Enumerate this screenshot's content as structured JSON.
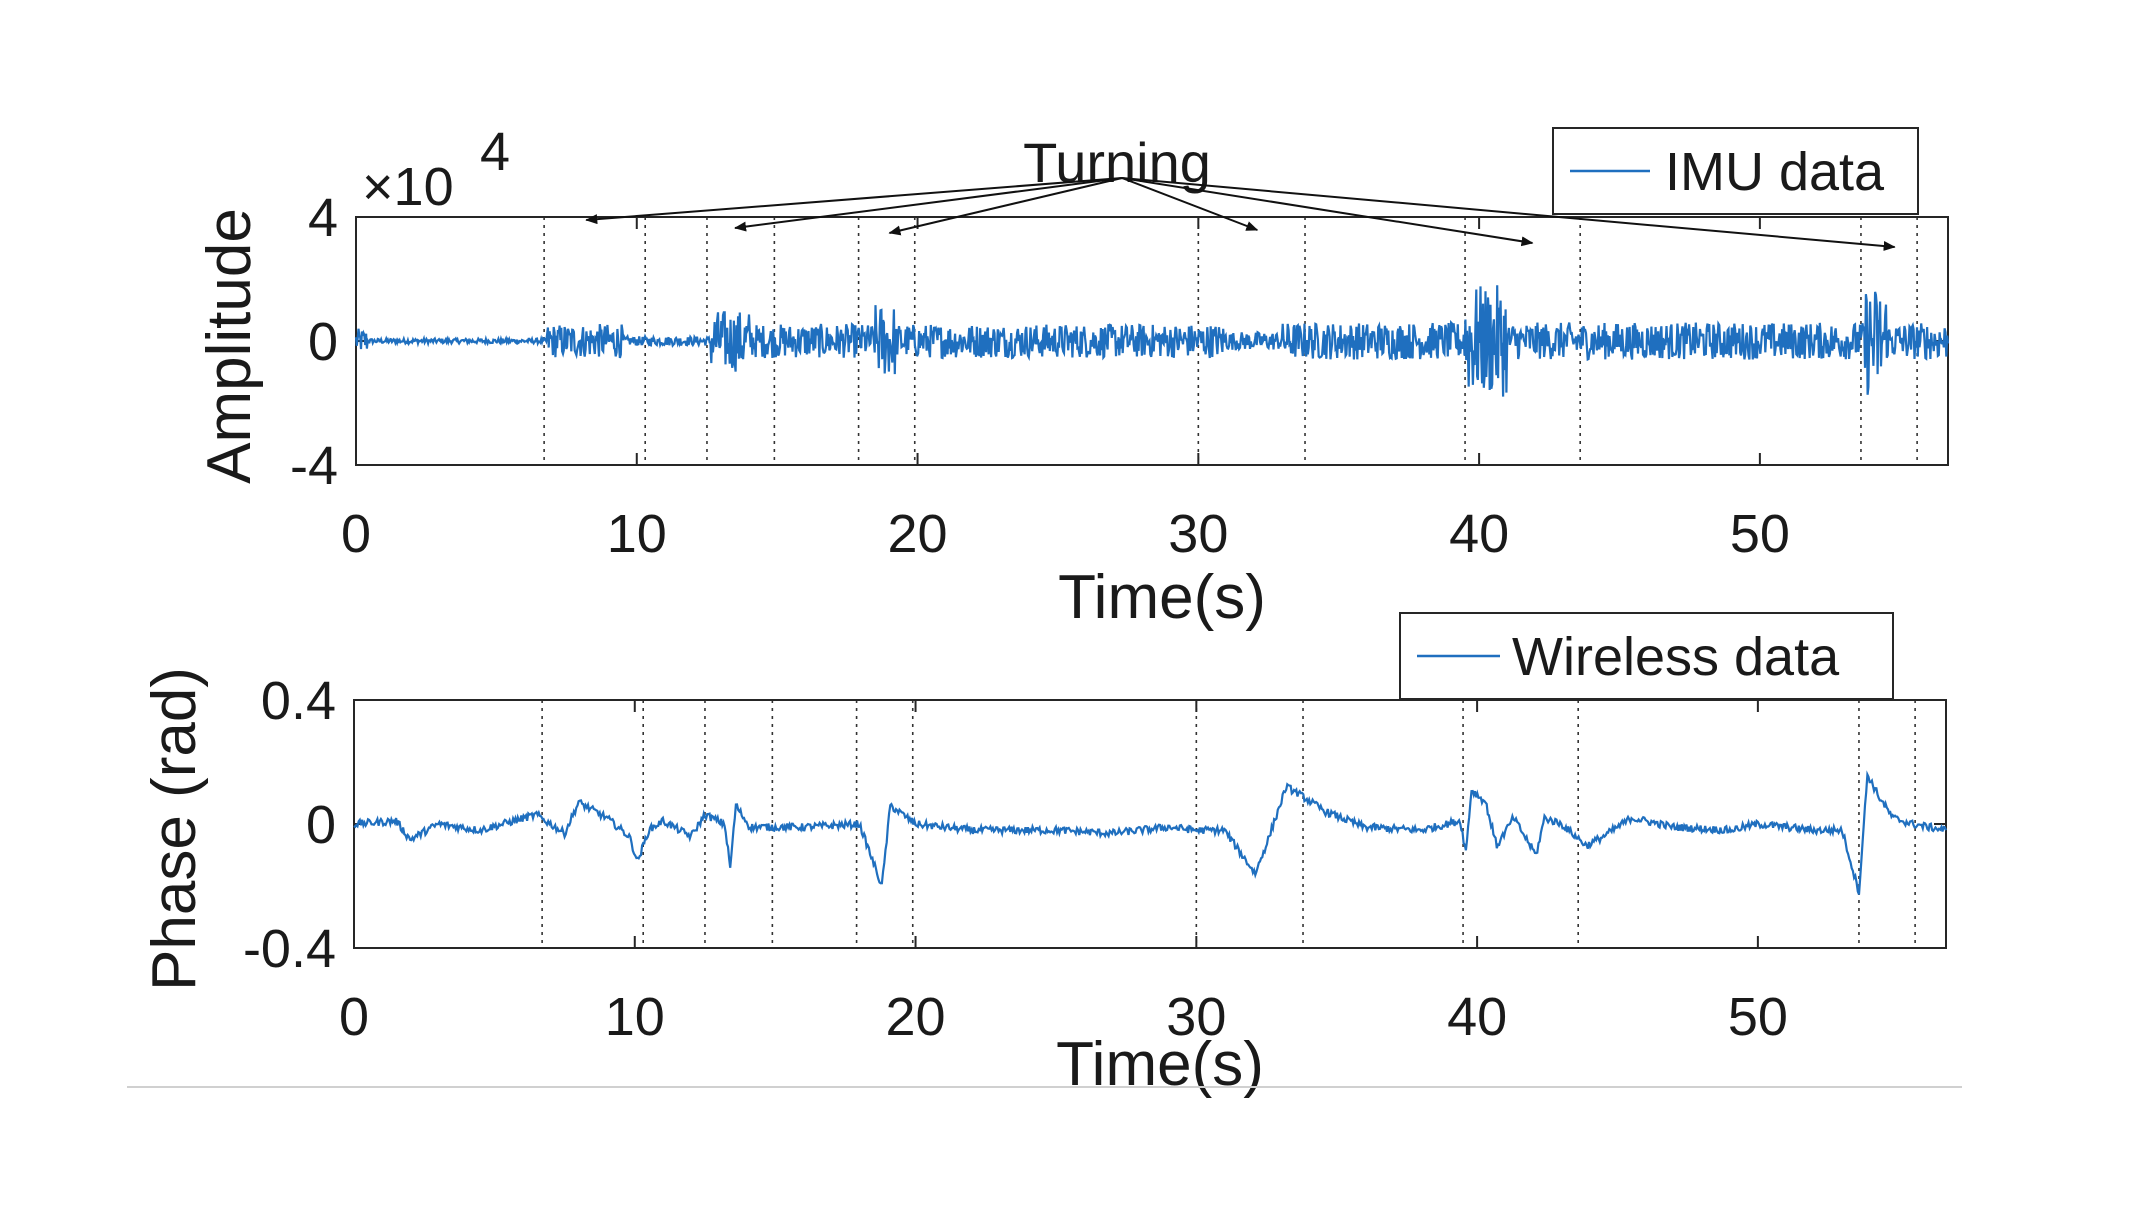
{
  "colors": {
    "series": "#1f6fbf",
    "axis": "#262626",
    "guide": "#333333",
    "rule": "#d0d0d0"
  },
  "annotation": {
    "text": "Turning"
  },
  "chart_data": [
    {
      "type": "line",
      "ylabel": "Amplitude",
      "xlabel": "Time(s)",
      "y_multiplier": "×10",
      "y_multiplier_exp": "4",
      "xlim": [
        0,
        56.7
      ],
      "ylim": [
        -4,
        4
      ],
      "xticks": [
        0,
        10,
        20,
        30,
        40,
        50
      ],
      "xtick_labels": [
        "0",
        "10",
        "20",
        "30",
        "40",
        "50"
      ],
      "yticks": [
        -4,
        0,
        4
      ],
      "ytick_labels": [
        "-4",
        "0",
        "4"
      ],
      "legend": {
        "placement": "top-right, above axes",
        "label": "IMU data"
      },
      "series": [
        {
          "name": "IMU data",
          "segments": [
            {
              "t0": 0.0,
              "t1": 0.4,
              "amp": 0.4
            },
            {
              "t0": 0.4,
              "t1": 6.8,
              "amp": 0.08
            },
            {
              "t0": 6.8,
              "t1": 9.5,
              "amp": 0.55
            },
            {
              "t0": 9.5,
              "t1": 12.6,
              "amp": 0.15
            },
            {
              "t0": 12.6,
              "t1": 14.0,
              "amp": 1.0
            },
            {
              "t0": 14.0,
              "t1": 18.5,
              "amp": 0.55
            },
            {
              "t0": 18.5,
              "t1": 19.2,
              "amp": 1.2
            },
            {
              "t0": 19.2,
              "t1": 31.0,
              "amp": 0.55
            },
            {
              "t0": 31.0,
              "t1": 33.0,
              "amp": 0.3
            },
            {
              "t0": 33.0,
              "t1": 39.5,
              "amp": 0.6
            },
            {
              "t0": 39.5,
              "t1": 41.0,
              "amp": 1.8
            },
            {
              "t0": 41.0,
              "t1": 53.7,
              "amp": 0.6
            },
            {
              "t0": 53.7,
              "t1": 54.5,
              "amp": 1.8
            },
            {
              "t0": 54.5,
              "t1": 56.7,
              "amp": 0.6
            }
          ]
        }
      ]
    },
    {
      "type": "line",
      "ylabel": "Phase (rad)",
      "xlabel": "Time(s)",
      "xlim": [
        0,
        56.7
      ],
      "ylim": [
        -0.4,
        0.4
      ],
      "xticks": [
        0,
        10,
        20,
        30,
        40,
        50
      ],
      "xtick_labels": [
        "0",
        "10",
        "20",
        "30",
        "40",
        "50"
      ],
      "yticks": [
        -0.4,
        0,
        0.4
      ],
      "ytick_labels": [
        "-0.4",
        "0",
        "0.4"
      ],
      "legend": {
        "placement": "top-right, above axes",
        "label": "Wireless data"
      },
      "series": [
        {
          "name": "Wireless data",
          "points": [
            [
              0,
              0
            ],
            [
              1.5,
              0.01
            ],
            [
              2,
              -0.05
            ],
            [
              3,
              0
            ],
            [
              4.5,
              -0.02
            ],
            [
              6.5,
              0.03
            ],
            [
              7.5,
              -0.03
            ],
            [
              8,
              0.07
            ],
            [
              9,
              0.02
            ],
            [
              9.8,
              -0.04
            ],
            [
              10.1,
              -0.12
            ],
            [
              10.5,
              -0.02
            ],
            [
              11,
              0.01
            ],
            [
              12,
              -0.04
            ],
            [
              12.5,
              0.03
            ],
            [
              13.2,
              0.0
            ],
            [
              13.4,
              -0.14
            ],
            [
              13.6,
              0.06
            ],
            [
              14.1,
              -0.01
            ],
            [
              16,
              -0.01
            ],
            [
              18,
              0.0
            ],
            [
              18.8,
              -0.2
            ],
            [
              19.1,
              0.06
            ],
            [
              20,
              0.0
            ],
            [
              22,
              -0.02
            ],
            [
              25,
              -0.02
            ],
            [
              27,
              -0.03
            ],
            [
              29,
              -0.01
            ],
            [
              30,
              -0.02
            ],
            [
              31,
              -0.02
            ],
            [
              32.1,
              -0.16
            ],
            [
              32.6,
              -0.04
            ],
            [
              33.2,
              0.12
            ],
            [
              33.6,
              0.1
            ],
            [
              34.6,
              0.04
            ],
            [
              36,
              -0.01
            ],
            [
              38,
              -0.02
            ],
            [
              39.4,
              0.01
            ],
            [
              39.6,
              -0.09
            ],
            [
              39.8,
              0.11
            ],
            [
              40.3,
              0.07
            ],
            [
              40.7,
              -0.07
            ],
            [
              41.3,
              0.02
            ],
            [
              42.1,
              -0.1
            ],
            [
              42.4,
              0.02
            ],
            [
              43,
              0.0
            ],
            [
              43.9,
              -0.07
            ],
            [
              44.5,
              -0.04
            ],
            [
              45.5,
              0.02
            ],
            [
              47,
              -0.01
            ],
            [
              49,
              -0.02
            ],
            [
              50,
              0.0
            ],
            [
              52,
              -0.02
            ],
            [
              53,
              -0.02
            ],
            [
              53.6,
              -0.22
            ],
            [
              53.9,
              0.16
            ],
            [
              54.3,
              0.09
            ],
            [
              54.8,
              0.02
            ],
            [
              55.5,
              0.0
            ],
            [
              56.7,
              -0.02
            ]
          ]
        }
      ]
    }
  ],
  "turning_intervals": [
    [
      6.7,
      10.3
    ],
    [
      12.5,
      14.9
    ],
    [
      17.9,
      19.9
    ],
    [
      30.0,
      33.8
    ],
    [
      39.5,
      43.6
    ],
    [
      53.6,
      55.6
    ]
  ]
}
